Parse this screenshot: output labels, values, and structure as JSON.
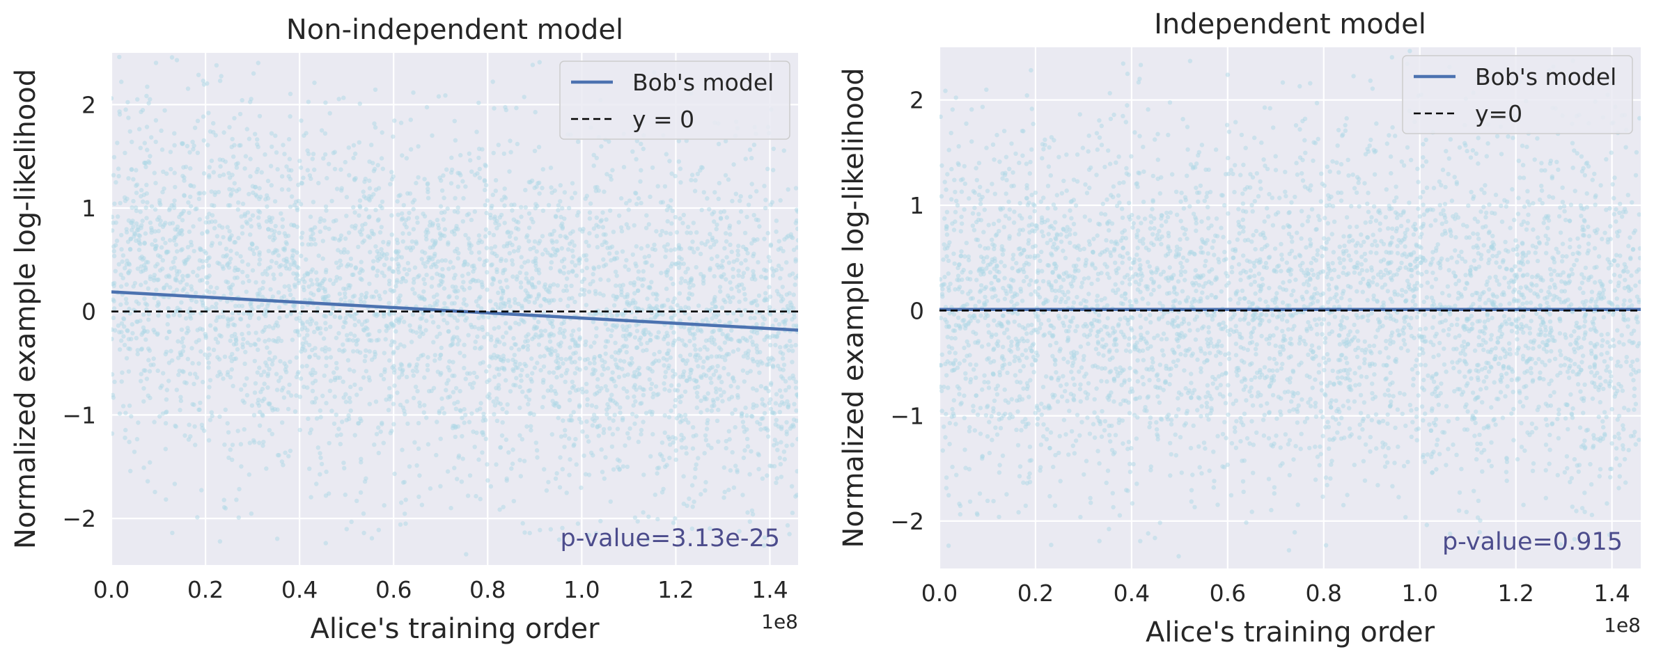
{
  "colors": {
    "background": "#eaeaf2",
    "grid": "#ffffff",
    "scatter": "#add8e6",
    "fit_line": "#4c72b0",
    "zero_line": "#000000",
    "annotation": "#4c4c8c"
  },
  "chart_data": [
    {
      "type": "scatter",
      "title": "Non-independent model",
      "xlabel": "Alice's training order",
      "ylabel": "Normalized example log-likelihood",
      "x_offset_label": "1e8",
      "xlim": [
        0,
        1.46
      ],
      "ylim": [
        -2.45,
        2.5
      ],
      "xticks": [
        0.0,
        0.2,
        0.4,
        0.6,
        0.8,
        1.0,
        1.2,
        1.4
      ],
      "xtick_labels": [
        "0.0",
        "0.2",
        "0.4",
        "0.6",
        "0.8",
        "1.0",
        "1.2",
        "1.4"
      ],
      "yticks": [
        -2,
        -1,
        0,
        1,
        2
      ],
      "ytick_labels": [
        "−2",
        "−1",
        "0",
        "1",
        "2"
      ],
      "grid": true,
      "legend_position": "top-right",
      "legend": [
        "Bob's model",
        "y = 0"
      ],
      "scatter_summary": {
        "n_points": 4200,
        "y_mean_start": 0.35,
        "y_mean_end": -0.25,
        "y_std": 0.85
      },
      "series": [
        {
          "name": "Bob's model",
          "kind": "line",
          "x": [
            0.0,
            1.46
          ],
          "y": [
            0.19,
            -0.18
          ]
        },
        {
          "name": "y = 0",
          "kind": "dashed",
          "x": [
            0.0,
            1.46
          ],
          "y": [
            0,
            0
          ]
        }
      ],
      "annotation": "p-value=3.13e-25"
    },
    {
      "type": "scatter",
      "title": "Independent model",
      "xlabel": "Alice's training order",
      "ylabel": "Normalized example log-likelihood",
      "x_offset_label": "1e8",
      "xlim": [
        0,
        1.46
      ],
      "ylim": [
        -2.45,
        2.5
      ],
      "xticks": [
        0.0,
        0.2,
        0.4,
        0.6,
        0.8,
        1.0,
        1.2,
        1.4
      ],
      "xtick_labels": [
        "0.0",
        "0.2",
        "0.4",
        "0.6",
        "0.8",
        "1.0",
        "1.2",
        "1.4"
      ],
      "yticks": [
        -2,
        -1,
        0,
        1,
        2
      ],
      "ytick_labels": [
        "−2",
        "−1",
        "0",
        "1",
        "2"
      ],
      "grid": true,
      "legend_position": "top-right",
      "legend": [
        "Bob's model",
        "y=0"
      ],
      "scatter_summary": {
        "n_points": 4200,
        "y_mean_start": 0.0,
        "y_mean_end": 0.0,
        "y_std": 0.85
      },
      "series": [
        {
          "name": "Bob's model",
          "kind": "line",
          "x": [
            0.0,
            1.46
          ],
          "y": [
            0.01,
            0.01
          ]
        },
        {
          "name": "y=0",
          "kind": "dashed",
          "x": [
            0.0,
            1.46
          ],
          "y": [
            0,
            0
          ]
        }
      ],
      "annotation": "p-value=0.915"
    }
  ]
}
